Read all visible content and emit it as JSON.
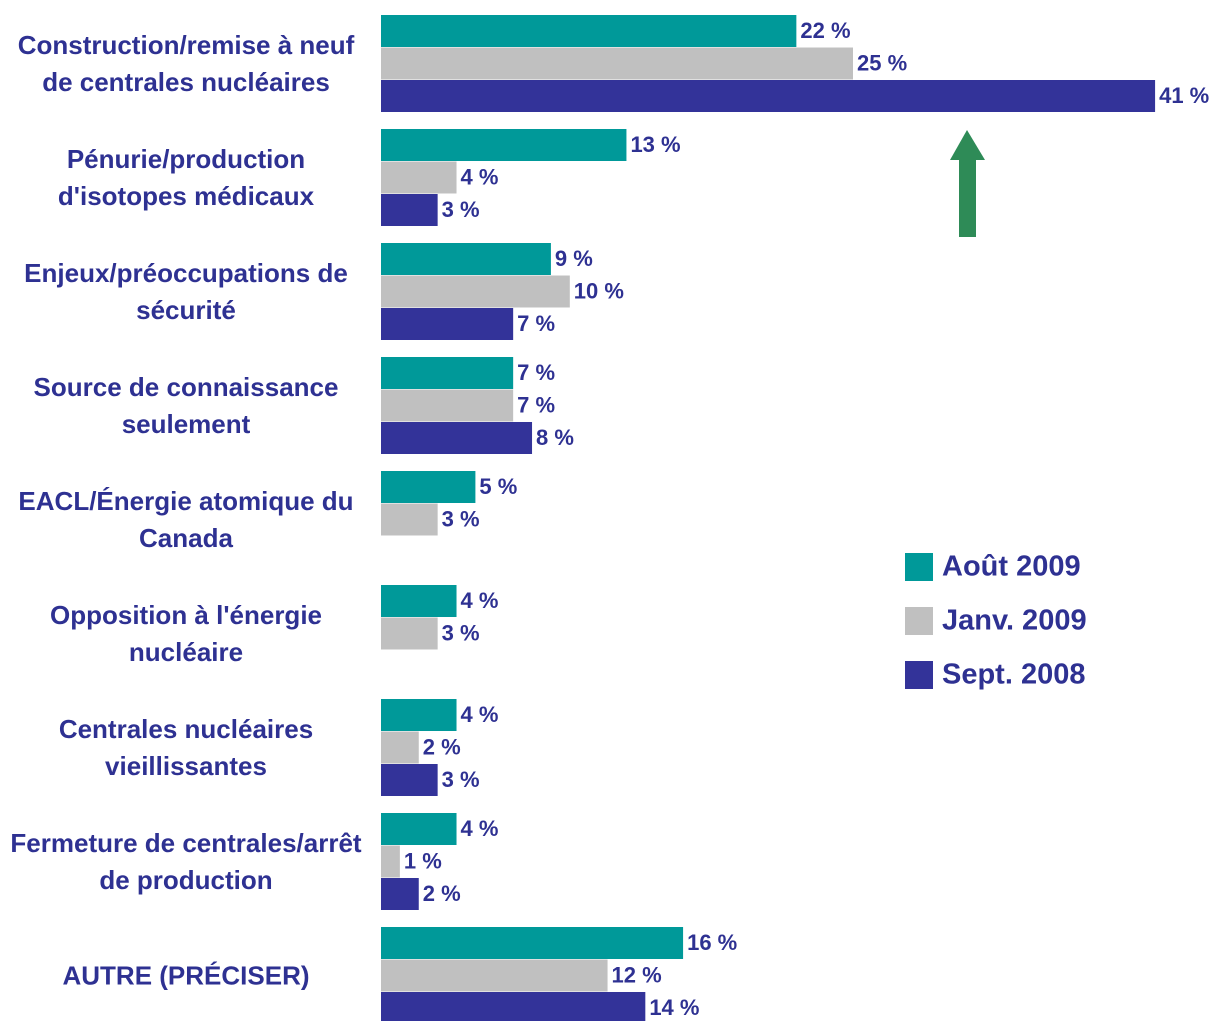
{
  "chart_data": {
    "type": "bar",
    "categories": [
      "Construction/remise à neuf de centrales nucléaires",
      "Pénurie/production d'isotopes médicaux",
      "Enjeux/préoccupations de sécurité",
      "Source de connaissance seulement",
      "EACL/Énergie atomique du Canada",
      "Opposition à l'énergie nucléaire",
      "Centrales nucléaires vieillissantes",
      "Fermeture de centrales/arrêt de production",
      "AUTRE (PRÉCISER)"
    ],
    "series": [
      {
        "name": "Août 2009",
        "color": "#009999",
        "values": [
          22,
          13,
          9,
          7,
          5,
          4,
          4,
          4,
          16
        ],
        "value_labels": [
          "22 %",
          "13 %",
          "9 %",
          "7 %",
          "5 %",
          "4 %",
          "4 %",
          "4 %",
          "16 %"
        ]
      },
      {
        "name": "Janv. 2009",
        "color": "#c0c0c0",
        "values": [
          25,
          4,
          10,
          7,
          3,
          3,
          2,
          1,
          12
        ],
        "value_labels": [
          "25 %",
          "4 %",
          "10 %",
          "7 %",
          "3 %",
          "3 %",
          "2 %",
          "1 %",
          "12 %"
        ]
      },
      {
        "name": "Sept. 2008",
        "color": "#333399",
        "values": [
          41,
          3,
          7,
          8,
          null,
          null,
          3,
          2,
          14
        ],
        "value_labels": [
          "41 %",
          "3 %",
          "7 %",
          "8 %",
          null,
          null,
          "3 %",
          "2 %",
          "14 %"
        ]
      }
    ]
  }
}
